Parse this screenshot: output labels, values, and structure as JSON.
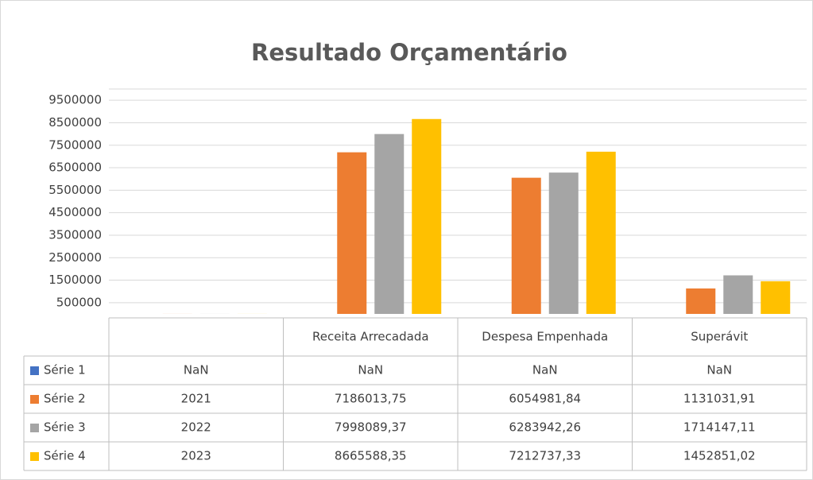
{
  "chart_data": {
    "type": "bar",
    "title": "Resultado Orçamentário",
    "categories": [
      null,
      "Receita Arrecadada",
      "Despesa Empenhada",
      "Superávit"
    ],
    "series": [
      {
        "name": "Série 1",
        "color": "#4472c4",
        "values": [
          null,
          null,
          null,
          null
        ],
        "value_labels": [
          "NaN",
          "NaN",
          "NaN",
          "NaN"
        ]
      },
      {
        "name": "Série 2",
        "color": "#ed7d31",
        "values": [
          2021,
          7186013.75,
          6054981.84,
          1131031.91
        ],
        "value_labels": [
          "2021",
          "7186013,75",
          "6054981,84",
          "1131031,91"
        ]
      },
      {
        "name": "Série 3",
        "color": "#a5a5a5",
        "values": [
          2022,
          7998089.37,
          6283942.26,
          1714147.11
        ],
        "value_labels": [
          "2022",
          "7998089,37",
          "6283942,26",
          "1714147,11"
        ]
      },
      {
        "name": "Série 4",
        "color": "#ffc000",
        "values": [
          2023,
          8665588.35,
          7212737.33,
          1452851.02
        ],
        "value_labels": [
          "2023",
          "8665588,35",
          "7212737,33",
          "1452851,02"
        ]
      }
    ],
    "ylim": [
      0,
      10000000
    ],
    "yticks": [
      500000,
      1500000,
      2500000,
      3500000,
      4500000,
      5500000,
      6500000,
      7500000,
      8500000,
      9500000
    ],
    "grid": true,
    "data_table": true
  }
}
